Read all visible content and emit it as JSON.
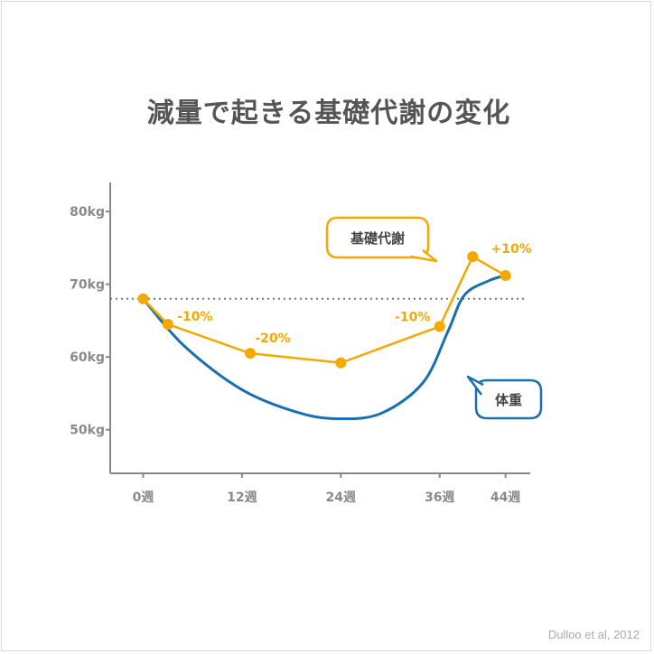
{
  "title": "減量で起きる基礎代謝の変化",
  "credit": "Dulloo et al, 2012",
  "colors": {
    "metabolism": "#f5a800",
    "weight": "#1a6fb0",
    "axis": "#888888",
    "baseline": "#777777"
  },
  "chart_data": {
    "type": "line",
    "x_ticks": [
      {
        "value": 0,
        "label": "0週"
      },
      {
        "value": 12,
        "label": "12週"
      },
      {
        "value": 24,
        "label": "24週"
      },
      {
        "value": 36,
        "label": "36週"
      },
      {
        "value": 44,
        "label": "44週"
      }
    ],
    "y_ticks": [
      {
        "value": 50,
        "label": "50kg"
      },
      {
        "value": 60,
        "label": "60kg"
      },
      {
        "value": 70,
        "label": "70kg"
      },
      {
        "value": 80,
        "label": "80kg"
      }
    ],
    "xlim": [
      -4,
      47
    ],
    "ylim": [
      44,
      84
    ],
    "baseline_value": 68,
    "series": [
      {
        "name": "基礎代謝",
        "style": "line-with-markers",
        "points": [
          {
            "x": 0,
            "y": 68
          },
          {
            "x": 3,
            "y": 64.5
          },
          {
            "x": 13,
            "y": 60.5
          },
          {
            "x": 24,
            "y": 59.2
          },
          {
            "x": 36,
            "y": 64.2
          },
          {
            "x": 40,
            "y": 73.8
          },
          {
            "x": 44,
            "y": 71.2
          }
        ],
        "labels": [
          {
            "point": 1,
            "text": "-10%"
          },
          {
            "point": 2,
            "text": "-20%"
          },
          {
            "point": 4,
            "text": "-10%"
          },
          {
            "point": 5,
            "text": "+10%"
          }
        ]
      },
      {
        "name": "体重",
        "style": "smooth",
        "points": [
          {
            "x": 0,
            "y": 68
          },
          {
            "x": 5,
            "y": 61.5
          },
          {
            "x": 12,
            "y": 55.5
          },
          {
            "x": 19,
            "y": 52.3
          },
          {
            "x": 24,
            "y": 51.5
          },
          {
            "x": 29,
            "y": 52.3
          },
          {
            "x": 34,
            "y": 56.5
          },
          {
            "x": 37,
            "y": 63.5
          },
          {
            "x": 39,
            "y": 68.5
          },
          {
            "x": 42,
            "y": 70.5
          },
          {
            "x": 44,
            "y": 71.2
          }
        ]
      }
    ]
  }
}
